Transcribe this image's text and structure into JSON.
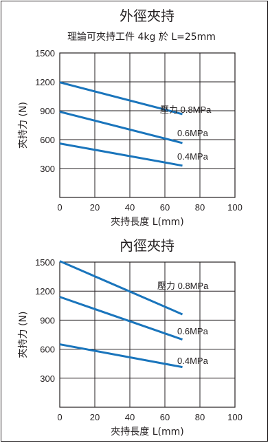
{
  "chart_data": [
    {
      "type": "line",
      "title": "外徑夾持",
      "subtitle": "理論可夾持工件 4kg 於 L=25mm",
      "xlabel": "夾持長度 L(mm)",
      "ylabel": "夾持力 (N)",
      "xlim": [
        0,
        100
      ],
      "ylim": [
        0,
        1500
      ],
      "x_ticks": [
        "0",
        "20",
        "40",
        "60",
        "80",
        "100"
      ],
      "y_ticks": [
        "300",
        "600",
        "900",
        "1200",
        "1500"
      ],
      "grid": true,
      "line_color": "#1a75bc",
      "series": [
        {
          "name": "壓力 0.8MPa",
          "x": [
            0,
            70
          ],
          "values": [
            1195,
            865
          ]
        },
        {
          "name": "0.6MPa",
          "x": [
            0,
            70
          ],
          "values": [
            890,
            565
          ]
        },
        {
          "name": "0.4MPa",
          "x": [
            0,
            70
          ],
          "values": [
            560,
            330
          ]
        }
      ]
    },
    {
      "type": "line",
      "title": "內徑夾持",
      "subtitle": "",
      "xlabel": "夾持長度 L(mm)",
      "ylabel": "夾持力 (N)",
      "xlim": [
        0,
        100
      ],
      "ylim": [
        0,
        1500
      ],
      "x_ticks": [
        "0",
        "20",
        "40",
        "60",
        "80",
        "100"
      ],
      "y_ticks": [
        "300",
        "600",
        "900",
        "1200",
        "1500"
      ],
      "grid": true,
      "line_color": "#1a75bc",
      "series": [
        {
          "name": "壓力 0.8MPa",
          "x": [
            0,
            70
          ],
          "values": [
            1510,
            960
          ]
        },
        {
          "name": "0.6MPa",
          "x": [
            0,
            70
          ],
          "values": [
            1140,
            700
          ]
        },
        {
          "name": "0.4MPa",
          "x": [
            0,
            70
          ],
          "values": [
            650,
            415
          ]
        }
      ]
    }
  ]
}
